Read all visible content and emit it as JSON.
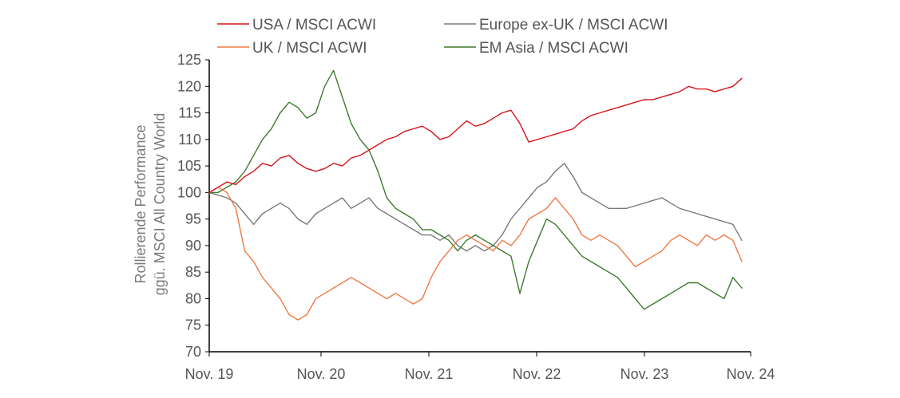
{
  "chart_data": {
    "type": "line",
    "ylabel": [
      "Rollierende Performance",
      "ggü. MSCI All Country World"
    ],
    "ylim": [
      70,
      125
    ],
    "yticks": [
      70,
      75,
      80,
      85,
      90,
      95,
      100,
      105,
      110,
      115,
      120,
      125
    ],
    "xlim": [
      "2019-11",
      "2024-12"
    ],
    "xticks": [
      "Nov. 19",
      "Nov. 20",
      "Nov. 21",
      "Nov. 22",
      "Nov. 23",
      "Nov. 24"
    ],
    "legend_position": "top",
    "grid": false,
    "series": [
      {
        "name": "USA / MSCI ACWI",
        "color": "#d7141a",
        "points": [
          [
            "2019-11",
            100
          ],
          [
            "2019-12",
            101
          ],
          [
            "2020-01",
            102
          ],
          [
            "2020-02",
            101.5
          ],
          [
            "2020-03",
            103
          ],
          [
            "2020-04",
            104
          ],
          [
            "2020-05",
            105.5
          ],
          [
            "2020-06",
            105
          ],
          [
            "2020-07",
            106.5
          ],
          [
            "2020-08",
            107
          ],
          [
            "2020-09",
            105.5
          ],
          [
            "2020-10",
            104.5
          ],
          [
            "2020-11",
            104
          ],
          [
            "2020-12",
            104.5
          ],
          [
            "2021-01",
            105.5
          ],
          [
            "2021-02",
            105
          ],
          [
            "2021-03",
            106.5
          ],
          [
            "2021-04",
            107
          ],
          [
            "2021-05",
            108
          ],
          [
            "2021-06",
            109
          ],
          [
            "2021-07",
            110
          ],
          [
            "2021-08",
            110.5
          ],
          [
            "2021-09",
            111.5
          ],
          [
            "2021-10",
            112
          ],
          [
            "2021-11",
            112.5
          ],
          [
            "2021-12",
            111.5
          ],
          [
            "2022-01",
            110
          ],
          [
            "2022-02",
            110.5
          ],
          [
            "2022-03",
            112
          ],
          [
            "2022-04",
            113.5
          ],
          [
            "2022-05",
            112.5
          ],
          [
            "2022-06",
            113
          ],
          [
            "2022-07",
            114
          ],
          [
            "2022-08",
            115
          ],
          [
            "2022-09",
            115.5
          ],
          [
            "2022-10",
            113
          ],
          [
            "2022-11",
            109.5
          ],
          [
            "2022-12",
            110
          ],
          [
            "2023-01",
            110.5
          ],
          [
            "2023-02",
            111
          ],
          [
            "2023-03",
            111.5
          ],
          [
            "2023-04",
            112
          ],
          [
            "2023-05",
            113.5
          ],
          [
            "2023-06",
            114.5
          ],
          [
            "2023-07",
            115
          ],
          [
            "2023-08",
            115.5
          ],
          [
            "2023-09",
            116
          ],
          [
            "2023-10",
            116.5
          ],
          [
            "2023-11",
            117
          ],
          [
            "2023-12",
            117.5
          ],
          [
            "2024-01",
            117.5
          ],
          [
            "2024-02",
            118
          ],
          [
            "2024-03",
            118.5
          ],
          [
            "2024-04",
            119
          ],
          [
            "2024-05",
            120
          ],
          [
            "2024-06",
            119.5
          ],
          [
            "2024-07",
            119.5
          ],
          [
            "2024-08",
            119
          ],
          [
            "2024-09",
            119.5
          ],
          [
            "2024-10",
            120
          ],
          [
            "2024-11",
            121.5
          ]
        ]
      },
      {
        "name": "UK / MSCI ACWI",
        "color": "#ee7a45",
        "points": [
          [
            "2019-11",
            100
          ],
          [
            "2019-12",
            101
          ],
          [
            "2020-01",
            100
          ],
          [
            "2020-02",
            97
          ],
          [
            "2020-03",
            89
          ],
          [
            "2020-04",
            87
          ],
          [
            "2020-05",
            84
          ],
          [
            "2020-06",
            82
          ],
          [
            "2020-07",
            80
          ],
          [
            "2020-08",
            77
          ],
          [
            "2020-09",
            76
          ],
          [
            "2020-10",
            77
          ],
          [
            "2020-11",
            80
          ],
          [
            "2020-12",
            81
          ],
          [
            "2021-01",
            82
          ],
          [
            "2021-02",
            83
          ],
          [
            "2021-03",
            84
          ],
          [
            "2021-04",
            83
          ],
          [
            "2021-05",
            82
          ],
          [
            "2021-06",
            81
          ],
          [
            "2021-07",
            80
          ],
          [
            "2021-08",
            81
          ],
          [
            "2021-09",
            80
          ],
          [
            "2021-10",
            79
          ],
          [
            "2021-11",
            80
          ],
          [
            "2021-12",
            84
          ],
          [
            "2022-01",
            87
          ],
          [
            "2022-02",
            89
          ],
          [
            "2022-03",
            91
          ],
          [
            "2022-04",
            92
          ],
          [
            "2022-05",
            91
          ],
          [
            "2022-06",
            90
          ],
          [
            "2022-07",
            89
          ],
          [
            "2022-08",
            91
          ],
          [
            "2022-09",
            90
          ],
          [
            "2022-10",
            92
          ],
          [
            "2022-11",
            95
          ],
          [
            "2022-12",
            96
          ],
          [
            "2023-01",
            97
          ],
          [
            "2023-02",
            99
          ],
          [
            "2023-03",
            97
          ],
          [
            "2023-04",
            95
          ],
          [
            "2023-05",
            92
          ],
          [
            "2023-06",
            91
          ],
          [
            "2023-07",
            92
          ],
          [
            "2023-08",
            91
          ],
          [
            "2023-09",
            90
          ],
          [
            "2023-10",
            88
          ],
          [
            "2023-11",
            86
          ],
          [
            "2023-12",
            87
          ],
          [
            "2024-01",
            88
          ],
          [
            "2024-02",
            89
          ],
          [
            "2024-03",
            91
          ],
          [
            "2024-04",
            92
          ],
          [
            "2024-05",
            91
          ],
          [
            "2024-06",
            90
          ],
          [
            "2024-07",
            92
          ],
          [
            "2024-08",
            91
          ],
          [
            "2024-09",
            92
          ],
          [
            "2024-10",
            91
          ],
          [
            "2024-11",
            87
          ]
        ]
      },
      {
        "name": "Europe ex-UK / MSCI ACWI",
        "color": "#7a7a7a",
        "points": [
          [
            "2019-11",
            100
          ],
          [
            "2019-12",
            99.5
          ],
          [
            "2020-01",
            99
          ],
          [
            "2020-02",
            98
          ],
          [
            "2020-03",
            96
          ],
          [
            "2020-04",
            94
          ],
          [
            "2020-05",
            96
          ],
          [
            "2020-06",
            97
          ],
          [
            "2020-07",
            98
          ],
          [
            "2020-08",
            97
          ],
          [
            "2020-09",
            95
          ],
          [
            "2020-10",
            94
          ],
          [
            "2020-11",
            96
          ],
          [
            "2020-12",
            97
          ],
          [
            "2021-01",
            98
          ],
          [
            "2021-02",
            99
          ],
          [
            "2021-03",
            97
          ],
          [
            "2021-04",
            98
          ],
          [
            "2021-05",
            99
          ],
          [
            "2021-06",
            97
          ],
          [
            "2021-07",
            96
          ],
          [
            "2021-08",
            95
          ],
          [
            "2021-09",
            94
          ],
          [
            "2021-10",
            93
          ],
          [
            "2021-11",
            92
          ],
          [
            "2021-12",
            92
          ],
          [
            "2022-01",
            91
          ],
          [
            "2022-02",
            92
          ],
          [
            "2022-03",
            90
          ],
          [
            "2022-04",
            89
          ],
          [
            "2022-05",
            90
          ],
          [
            "2022-06",
            89
          ],
          [
            "2022-07",
            90
          ],
          [
            "2022-08",
            92
          ],
          [
            "2022-09",
            95
          ],
          [
            "2022-10",
            97
          ],
          [
            "2022-11",
            99
          ],
          [
            "2022-12",
            101
          ],
          [
            "2023-01",
            102
          ],
          [
            "2023-02",
            104
          ],
          [
            "2023-03",
            105.5
          ],
          [
            "2023-04",
            103
          ],
          [
            "2023-05",
            100
          ],
          [
            "2023-06",
            99
          ],
          [
            "2023-07",
            98
          ],
          [
            "2023-08",
            97
          ],
          [
            "2023-09",
            97
          ],
          [
            "2023-10",
            97
          ],
          [
            "2023-11",
            97.5
          ],
          [
            "2023-12",
            98
          ],
          [
            "2024-01",
            98.5
          ],
          [
            "2024-02",
            99
          ],
          [
            "2024-03",
            98
          ],
          [
            "2024-04",
            97
          ],
          [
            "2024-05",
            96.5
          ],
          [
            "2024-06",
            96
          ],
          [
            "2024-07",
            95.5
          ],
          [
            "2024-08",
            95
          ],
          [
            "2024-09",
            94.5
          ],
          [
            "2024-10",
            94
          ],
          [
            "2024-11",
            91
          ]
        ]
      },
      {
        "name": "EM Asia / MSCI ACWI",
        "color": "#3c7a2c",
        "points": [
          [
            "2019-11",
            100
          ],
          [
            "2019-12",
            100
          ],
          [
            "2020-01",
            101
          ],
          [
            "2020-02",
            102
          ],
          [
            "2020-03",
            104
          ],
          [
            "2020-04",
            107
          ],
          [
            "2020-05",
            110
          ],
          [
            "2020-06",
            112
          ],
          [
            "2020-07",
            115
          ],
          [
            "2020-08",
            117
          ],
          [
            "2020-09",
            116
          ],
          [
            "2020-10",
            114
          ],
          [
            "2020-11",
            115
          ],
          [
            "2020-12",
            120
          ],
          [
            "2021-01",
            123
          ],
          [
            "2021-02",
            118
          ],
          [
            "2021-03",
            113
          ],
          [
            "2021-04",
            110
          ],
          [
            "2021-05",
            108
          ],
          [
            "2021-06",
            104
          ],
          [
            "2021-07",
            99
          ],
          [
            "2021-08",
            97
          ],
          [
            "2021-09",
            96
          ],
          [
            "2021-10",
            95
          ],
          [
            "2021-11",
            93
          ],
          [
            "2021-12",
            93
          ],
          [
            "2022-01",
            92
          ],
          [
            "2022-02",
            91
          ],
          [
            "2022-03",
            89
          ],
          [
            "2022-04",
            91
          ],
          [
            "2022-05",
            92
          ],
          [
            "2022-06",
            91
          ],
          [
            "2022-07",
            90
          ],
          [
            "2022-08",
            89
          ],
          [
            "2022-09",
            88
          ],
          [
            "2022-10",
            81
          ],
          [
            "2022-11",
            87
          ],
          [
            "2022-12",
            91
          ],
          [
            "2023-01",
            95
          ],
          [
            "2023-02",
            94
          ],
          [
            "2023-03",
            92
          ],
          [
            "2023-04",
            90
          ],
          [
            "2023-05",
            88
          ],
          [
            "2023-06",
            87
          ],
          [
            "2023-07",
            86
          ],
          [
            "2023-08",
            85
          ],
          [
            "2023-09",
            84
          ],
          [
            "2023-10",
            82
          ],
          [
            "2023-11",
            80
          ],
          [
            "2023-12",
            78
          ],
          [
            "2024-01",
            79
          ],
          [
            "2024-02",
            80
          ],
          [
            "2024-03",
            81
          ],
          [
            "2024-04",
            82
          ],
          [
            "2024-05",
            83
          ],
          [
            "2024-06",
            83
          ],
          [
            "2024-07",
            82
          ],
          [
            "2024-08",
            81
          ],
          [
            "2024-09",
            80
          ],
          [
            "2024-10",
            84
          ],
          [
            "2024-11",
            82
          ]
        ]
      }
    ]
  }
}
